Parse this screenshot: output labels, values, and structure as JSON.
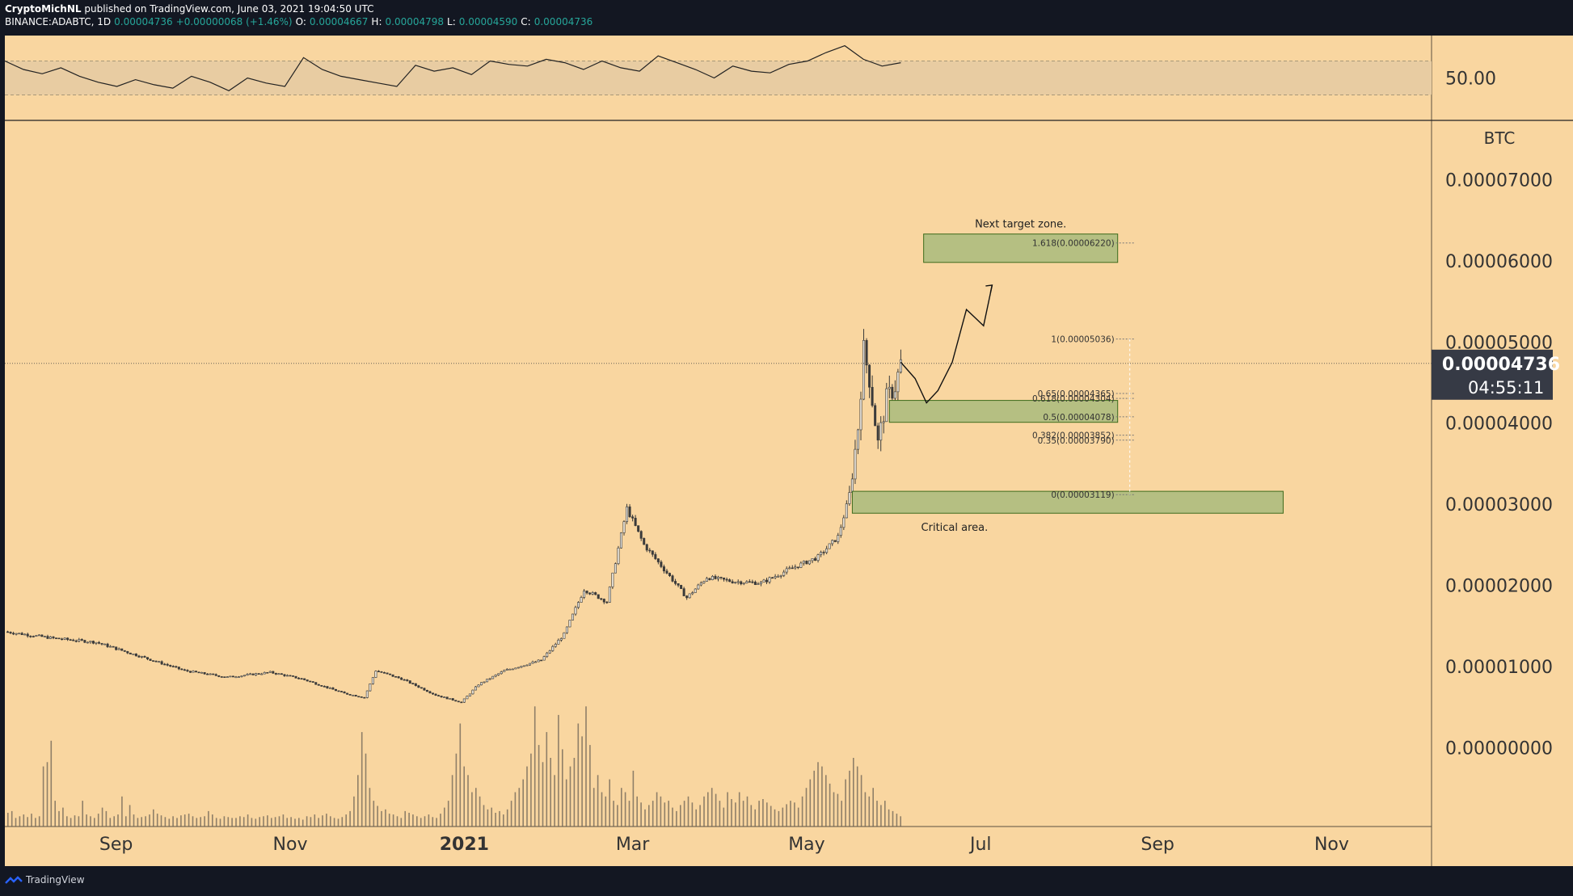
{
  "header": {
    "publisher": "CryptoMichNL",
    "published_text": "published on TradingView.com, June 03, 2021 19:04:50 UTC",
    "symbol": "BINANCE:ADABTC, 1D",
    "price": "0.00004736",
    "change": "+0.00000068 (+1.46%)",
    "open_label": "O:",
    "open": "0.00004667",
    "high_label": "H:",
    "high": "0.00004798",
    "low_label": "L:",
    "low": "0.00004590",
    "close_label": "C:",
    "close": "0.00004736"
  },
  "footer": {
    "brand": "TradingView"
  },
  "colors": {
    "background": "#f9d6a0",
    "frame": "#131722",
    "candle": "#3a3a3a",
    "volume": "#6b6256",
    "zone_fill": "#b5bf82",
    "zone_stroke": "#3d6b1c",
    "rsi_band": "#e8cca2",
    "price_badge": "#363a45",
    "up_text": "#26a69a"
  },
  "chart_data": {
    "type": "candlestick",
    "symbol": "BINANCE:ADABTC",
    "interval": "1D",
    "y_unit": "BTC",
    "ylim": [
      -9.7e-06,
      7.73e-05
    ],
    "y_ticks": [
      "0.00007000",
      "0.00006000",
      "0.00005000",
      "0.00004000",
      "0.00003000",
      "0.00002000",
      "0.00001000",
      "0.00000000"
    ],
    "y_tick_values": [
      7e-05,
      6e-05,
      5e-05,
      4e-05,
      3e-05,
      2e-05,
      1e-05,
      0
    ],
    "x_ticks": [
      "Sep",
      "Nov",
      "2021",
      "Mar",
      "May",
      "Jul",
      "Sep",
      "Nov"
    ],
    "x_tick_dates": [
      "2020-09-01",
      "2020-11-01",
      "2021-01-01",
      "2021-03-01",
      "2021-05-01",
      "2021-07-01",
      "2021-09-01",
      "2021-11-01"
    ],
    "xlim": [
      "2020-07-24",
      "2021-12-06"
    ],
    "last_price": {
      "value": "0.00004736",
      "countdown": "04:55:11"
    },
    "price_path": [
      [
        "2020-07-24",
        1.43e-05
      ],
      [
        "2020-08-10",
        1.35e-05
      ],
      [
        "2020-08-25",
        1.3e-05
      ],
      [
        "2020-09-10",
        1.12e-05
      ],
      [
        "2020-09-25",
        9.5e-06
      ],
      [
        "2020-10-10",
        8.7e-06
      ],
      [
        "2020-10-25",
        9.3e-06
      ],
      [
        "2020-11-05",
        8.5e-06
      ],
      [
        "2020-11-20",
        6.7e-06
      ],
      [
        "2020-11-27",
        6.2e-06
      ],
      [
        "2020-12-01",
        9.5e-06
      ],
      [
        "2020-12-10",
        8.5e-06
      ],
      [
        "2020-12-22",
        6.5e-06
      ],
      [
        "2020-12-31",
        5.6e-06
      ],
      [
        "2021-01-06",
        7.8e-06
      ],
      [
        "2021-01-15",
        9.5e-06
      ],
      [
        "2021-01-28",
        1.08e-05
      ],
      [
        "2021-02-05",
        1.4e-05
      ],
      [
        "2021-02-12",
        1.95e-05
      ],
      [
        "2021-02-20",
        1.8e-05
      ],
      [
        "2021-02-27",
        2.95e-05
      ],
      [
        "2021-03-05",
        2.5e-05
      ],
      [
        "2021-03-12",
        2.2e-05
      ],
      [
        "2021-03-20",
        1.85e-05
      ],
      [
        "2021-03-27",
        2.1e-05
      ],
      [
        "2021-04-05",
        2.05e-05
      ],
      [
        "2021-04-15",
        2.03e-05
      ],
      [
        "2021-04-25",
        2.2e-05
      ],
      [
        "2021-05-05",
        2.35e-05
      ],
      [
        "2021-05-12",
        2.6e-05
      ],
      [
        "2021-05-16",
        3.1e-05
      ],
      [
        "2021-05-19",
        3.95e-05
      ],
      [
        "2021-05-21",
        4.9e-05
      ],
      [
        "2021-05-23",
        4.55e-05
      ],
      [
        "2021-05-26",
        3.75e-05
      ],
      [
        "2021-05-29",
        4.3e-05
      ],
      [
        "2021-06-01",
        4.45e-05
      ],
      [
        "2021-06-03",
        4.736e-05
      ]
    ],
    "projection_path": [
      [
        "2021-06-03",
        4.75e-05
      ],
      [
        "2021-06-08",
        4.55e-05
      ],
      [
        "2021-06-12",
        4.25e-05
      ],
      [
        "2021-06-16",
        4.4e-05
      ],
      [
        "2021-06-21",
        4.75e-05
      ],
      [
        "2021-06-26",
        5.4e-05
      ],
      [
        "2021-06-29",
        5.3e-05
      ],
      [
        "2021-07-02",
        5.2e-05
      ],
      [
        "2021-07-05",
        5.7e-05
      ]
    ],
    "fib_levels": [
      {
        "label": "1.618(0.00006220)",
        "value": 6.22e-05
      },
      {
        "label": "1(0.00005036)",
        "value": 5.036e-05
      },
      {
        "label": "0.65(0.00004365)",
        "value": 4.365e-05
      },
      {
        "label": "0.618(0.00004304)",
        "value": 4.304e-05
      },
      {
        "label": "0.5(0.00004078)",
        "value": 4.078e-05
      },
      {
        "label": "0.382(0.00003852)",
        "value": 3.852e-05
      },
      {
        "label": "0.35(0.00003790)",
        "value": 3.79e-05
      },
      {
        "label": "0(0.00003119)",
        "value": 3.119e-05
      }
    ],
    "zones": [
      {
        "label": "Next target zone.",
        "from": "2021-06-11",
        "to": "2021-08-18",
        "top": 6.33e-05,
        "bottom": 5.98e-05,
        "label_position": "above"
      },
      {
        "label": "",
        "from": "2021-05-30",
        "to": "2021-08-18",
        "top": 4.28e-05,
        "bottom": 4.01e-05
      },
      {
        "label": "Critical area.",
        "from": "2021-05-17",
        "to": "2021-10-15",
        "top": 3.16e-05,
        "bottom": 2.89e-05,
        "label_position": "below"
      }
    ],
    "rsi": {
      "tick_label": "50.00",
      "band": [
        30,
        70
      ],
      "values": [
        70,
        60,
        55,
        62,
        52,
        45,
        40,
        48,
        42,
        38,
        52,
        45,
        35,
        50,
        44,
        40,
        74,
        60,
        52,
        48,
        44,
        40,
        65,
        58,
        62,
        54,
        70,
        66,
        64,
        72,
        68,
        60,
        70,
        62,
        58,
        76,
        68,
        60,
        50,
        64,
        58,
        56,
        66,
        70,
        80,
        88,
        72,
        64,
        68
      ]
    },
    "volume": {
      "ylim": [
        0,
        160
      ],
      "values": [
        16,
        18,
        10,
        12,
        14,
        11,
        15,
        10,
        12,
        70,
        75,
        100,
        30,
        18,
        22,
        12,
        10,
        13,
        12,
        30,
        14,
        12,
        10,
        15,
        22,
        18,
        10,
        12,
        14,
        35,
        12,
        25,
        14,
        10,
        11,
        12,
        14,
        20,
        15,
        13,
        11,
        9,
        12,
        10,
        13,
        14,
        15,
        12,
        10,
        11,
        12,
        18,
        14,
        10,
        9,
        12,
        11,
        10,
        10,
        12,
        11,
        14,
        10,
        9,
        11,
        12,
        13,
        10,
        11,
        12,
        14,
        10,
        11,
        9,
        10,
        8,
        12,
        11,
        14,
        10,
        13,
        15,
        12,
        10,
        9,
        11,
        14,
        18,
        35,
        60,
        110,
        85,
        45,
        30,
        24,
        18,
        20,
        15,
        14,
        12,
        10,
        18,
        16,
        14,
        12,
        10,
        12,
        14,
        11,
        10,
        15,
        22,
        30,
        60,
        85,
        120,
        70,
        60,
        40,
        45,
        35,
        25,
        20,
        22,
        16,
        18,
        14,
        20,
        30,
        40,
        45,
        55,
        70,
        85,
        140,
        95,
        75,
        110,
        80,
        60,
        130,
        90,
        55,
        70,
        80,
        120,
        105,
        140,
        95,
        45,
        60,
        40,
        35,
        55,
        30,
        25,
        45,
        40,
        30,
        65,
        35,
        28,
        20,
        25,
        30,
        40,
        35,
        28,
        30,
        22,
        18,
        25,
        30,
        35,
        28,
        20,
        25,
        35,
        40,
        45,
        38,
        30,
        22,
        40,
        32,
        28,
        40,
        30,
        35,
        25,
        20,
        30,
        32,
        28,
        24,
        20,
        18,
        22,
        26,
        30,
        28,
        22,
        35,
        45,
        55,
        65,
        75,
        70,
        60,
        50,
        40,
        38,
        30,
        55,
        65,
        80,
        70,
        60,
        40,
        35,
        45,
        30,
        25,
        30,
        20,
        18,
        15,
        12
      ]
    }
  }
}
